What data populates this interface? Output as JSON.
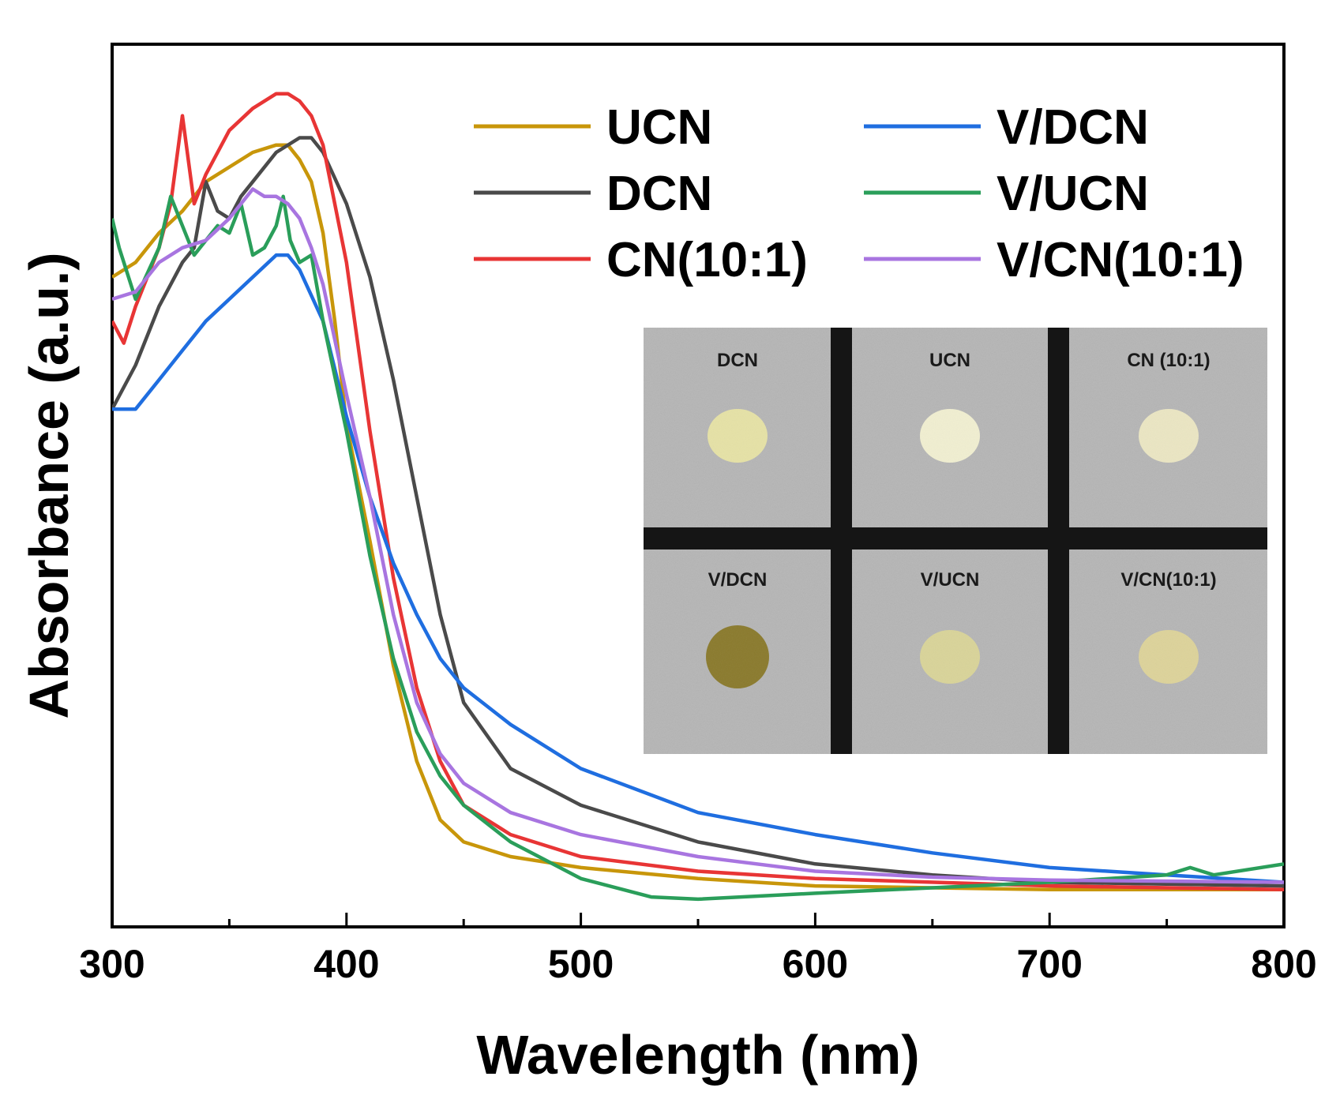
{
  "chart_data": {
    "type": "line",
    "title": "",
    "xlabel": "Wavelength (nm)",
    "ylabel": "Absorbance (a.u.)",
    "xlim": [
      300,
      800
    ],
    "ylim": [
      0,
      1.1
    ],
    "xticks": [
      300,
      400,
      500,
      600,
      700,
      800
    ],
    "yticks_shown": false,
    "grid": false,
    "legend_position": "top-right",
    "series": [
      {
        "name": "UCN",
        "color": "#c8960a",
        "x": [
          300,
          310,
          320,
          330,
          340,
          350,
          360,
          370,
          375,
          380,
          385,
          390,
          395,
          400,
          410,
          420,
          430,
          440,
          450,
          470,
          500,
          550,
          600,
          700,
          800
        ],
        "y": [
          0.86,
          0.88,
          0.92,
          0.95,
          0.99,
          1.01,
          1.03,
          1.04,
          1.04,
          1.02,
          0.99,
          0.92,
          0.8,
          0.66,
          0.5,
          0.33,
          0.2,
          0.12,
          0.09,
          0.07,
          0.055,
          0.04,
          0.03,
          0.025,
          0.025
        ]
      },
      {
        "name": "DCN",
        "color": "#4a4a4a",
        "x": [
          300,
          310,
          320,
          330,
          335,
          340,
          345,
          350,
          355,
          360,
          370,
          380,
          385,
          390,
          400,
          410,
          420,
          430,
          440,
          450,
          470,
          500,
          550,
          600,
          650,
          700,
          800
        ],
        "y": [
          0.68,
          0.74,
          0.82,
          0.88,
          0.9,
          0.99,
          0.95,
          0.94,
          0.97,
          0.99,
          1.03,
          1.05,
          1.05,
          1.03,
          0.96,
          0.86,
          0.72,
          0.56,
          0.4,
          0.28,
          0.19,
          0.14,
          0.09,
          0.06,
          0.045,
          0.035,
          0.03
        ]
      },
      {
        "name": "CN(10:1)",
        "color": "#e83535",
        "x": [
          300,
          305,
          310,
          320,
          325,
          330,
          335,
          340,
          345,
          350,
          360,
          370,
          375,
          380,
          385,
          390,
          400,
          410,
          420,
          430,
          440,
          450,
          470,
          500,
          550,
          600,
          700,
          800
        ],
        "y": [
          0.8,
          0.77,
          0.82,
          0.9,
          0.96,
          1.08,
          0.96,
          1.0,
          1.03,
          1.06,
          1.09,
          1.11,
          1.11,
          1.1,
          1.08,
          1.04,
          0.88,
          0.65,
          0.45,
          0.3,
          0.2,
          0.14,
          0.1,
          0.07,
          0.05,
          0.04,
          0.03,
          0.025
        ]
      },
      {
        "name": "V/DCN",
        "color": "#1f6ee0",
        "x": [
          300,
          310,
          320,
          330,
          340,
          350,
          360,
          370,
          375,
          380,
          390,
          400,
          410,
          420,
          430,
          440,
          450,
          470,
          500,
          550,
          600,
          650,
          700,
          750,
          800
        ],
        "y": [
          0.68,
          0.68,
          0.72,
          0.76,
          0.8,
          0.83,
          0.86,
          0.89,
          0.89,
          0.87,
          0.8,
          0.67,
          0.56,
          0.47,
          0.4,
          0.34,
          0.3,
          0.25,
          0.19,
          0.13,
          0.1,
          0.075,
          0.055,
          0.045,
          0.035
        ]
      },
      {
        "name": "V/UCN",
        "color": "#2a9e5a",
        "x": [
          300,
          303,
          310,
          320,
          325,
          330,
          335,
          340,
          345,
          350,
          355,
          360,
          365,
          370,
          373,
          376,
          380,
          385,
          390,
          400,
          410,
          420,
          430,
          440,
          450,
          470,
          500,
          530,
          550,
          600,
          700,
          750,
          760,
          770,
          800
        ],
        "y": [
          0.94,
          0.9,
          0.83,
          0.9,
          0.97,
          0.93,
          0.89,
          0.91,
          0.93,
          0.92,
          0.96,
          0.89,
          0.9,
          0.93,
          0.97,
          0.91,
          0.88,
          0.89,
          0.8,
          0.65,
          0.48,
          0.34,
          0.24,
          0.18,
          0.14,
          0.09,
          0.04,
          0.015,
          0.012,
          0.02,
          0.035,
          0.045,
          0.055,
          0.045,
          0.06
        ]
      },
      {
        "name": "V/CN(10:1)",
        "color": "#a875e0",
        "x": [
          300,
          310,
          320,
          330,
          340,
          350,
          355,
          360,
          365,
          370,
          375,
          380,
          385,
          390,
          400,
          410,
          420,
          430,
          440,
          450,
          470,
          500,
          550,
          600,
          650,
          700,
          800
        ],
        "y": [
          0.83,
          0.84,
          0.88,
          0.9,
          0.91,
          0.94,
          0.96,
          0.98,
          0.97,
          0.97,
          0.96,
          0.94,
          0.9,
          0.85,
          0.7,
          0.56,
          0.4,
          0.28,
          0.21,
          0.17,
          0.13,
          0.1,
          0.07,
          0.05,
          0.042,
          0.038,
          0.035
        ]
      }
    ]
  },
  "inset_photo": {
    "samples": [
      {
        "label": "DCN",
        "powder_color": "#e6e2a6"
      },
      {
        "label": "UCN",
        "powder_color": "#f1efd1"
      },
      {
        "label": "CN (10:1)",
        "powder_color": "#ebe6c3"
      },
      {
        "label": "V/DCN",
        "powder_color": "#8a7a2c"
      },
      {
        "label": "V/UCN",
        "powder_color": "#d9d499"
      },
      {
        "label": "V/CN(10:1)",
        "powder_color": "#ddd39a"
      }
    ]
  }
}
